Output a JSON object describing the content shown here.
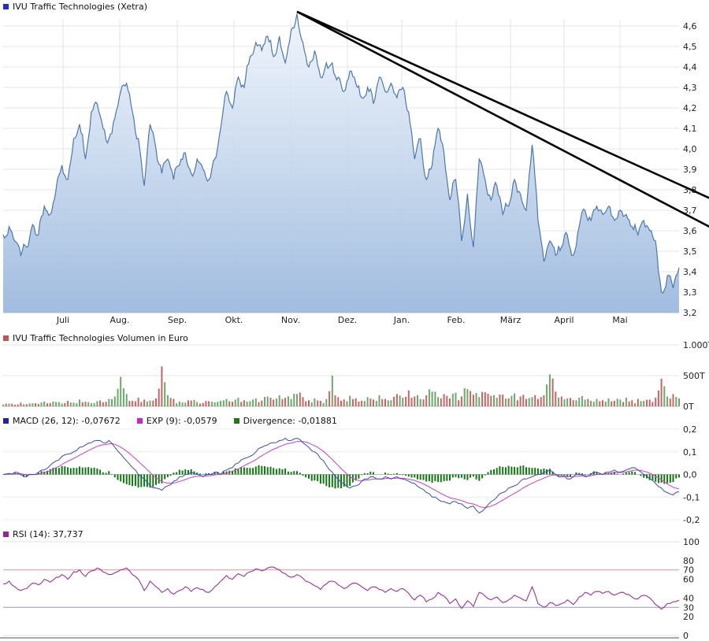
{
  "legend": {
    "price_title": "IVU Traffic Technologies (Xetra)",
    "volume_title": "IVU Traffic Technologies Volumen in Euro",
    "macd_label": "MACD (26, 12): -0,07672",
    "exp_label": "EXP (9): -0,0579",
    "divergence_label": "Divergence: -0,01881",
    "rsi_label": "RSI (14): 37,737",
    "swatches": {
      "price": "#2a2acc",
      "volume": "#c05555",
      "macd": "#2222aa",
      "exp": "#cc22cc",
      "divergence": "#1a7a1a",
      "rsi": "#992299"
    }
  },
  "chart_data": {
    "type": "line",
    "title": "IVU Traffic Technologies (Xetra)",
    "x_ticks": {
      "labels": [
        "Juli",
        "Aug.",
        "Sep.",
        "Okt.",
        "Nov.",
        "Dez.",
        "Jan.",
        "Feb.",
        "März",
        "April",
        "Mai"
      ],
      "fracs": [
        0.0886,
        0.1725,
        0.2576,
        0.3415,
        0.4254,
        0.5093,
        0.5897,
        0.6702,
        0.7506,
        0.8299,
        0.9126
      ]
    },
    "price": {
      "type": "area",
      "unit": "EUR",
      "ylim": [
        3.2,
        4.6
      ],
      "line_color": "#4a78b0",
      "trend_color": "#000000",
      "yticks": {
        "values": [
          4.6,
          4.5,
          4.4,
          4.3,
          4.2,
          4.1,
          4.0,
          3.9,
          3.8,
          3.7,
          3.6,
          3.5,
          3.4,
          3.3,
          3.2
        ],
        "labels": [
          "4,6",
          "4,5",
          "4,4",
          "4,3",
          "4,2",
          "4,1",
          "4,0",
          "3,9",
          "3,8",
          "3,7",
          "3,6",
          "3,5",
          "3,4",
          "3,3",
          "3,2"
        ]
      },
      "values": [
        3.58,
        3.62,
        3.55,
        3.48,
        3.52,
        3.63,
        3.58,
        3.72,
        3.68,
        3.8,
        3.92,
        3.85,
        4.05,
        4.12,
        3.95,
        4.18,
        4.22,
        4.1,
        4.05,
        4.15,
        4.28,
        4.32,
        4.18,
        4.05,
        3.82,
        4.12,
        4.0,
        3.88,
        3.95,
        3.85,
        3.92,
        3.98,
        3.88,
        3.95,
        3.9,
        3.85,
        3.95,
        4.1,
        4.28,
        4.2,
        4.35,
        4.3,
        4.45,
        4.52,
        4.48,
        4.55,
        4.45,
        4.55,
        4.42,
        4.58,
        4.66,
        4.52,
        4.4,
        4.48,
        4.35,
        4.42,
        4.42,
        4.35,
        4.28,
        4.38,
        4.32,
        4.25,
        4.3,
        4.22,
        4.35,
        4.28,
        4.32,
        4.25,
        4.3,
        4.18,
        3.95,
        4.05,
        3.85,
        3.92,
        4.1,
        3.98,
        3.75,
        3.85,
        3.55,
        3.78,
        3.52,
        3.95,
        3.85,
        3.75,
        3.82,
        3.68,
        3.72,
        3.85,
        3.78,
        3.7,
        4.02,
        3.65,
        3.45,
        3.55,
        3.48,
        3.52,
        3.58,
        3.48,
        3.62,
        3.7,
        3.65,
        3.72,
        3.68,
        3.72,
        3.65,
        3.7,
        3.68,
        3.62,
        3.58,
        3.65,
        3.6,
        3.55,
        3.3,
        3.38,
        3.32,
        3.42
      ],
      "trendlines": [
        {
          "x1_frac": 0.4347,
          "v1": 4.67,
          "x2_frac": 1.0446,
          "v2": 3.76
        },
        {
          "x1_frac": 0.4347,
          "v1": 4.67,
          "x2_frac": 1.0446,
          "v2": 3.62
        }
      ]
    },
    "volume": {
      "type": "bar",
      "unit": "T",
      "ylim": [
        0,
        1000
      ],
      "up_color": "#6aa96a",
      "down_color": "#c96363",
      "yticks": {
        "values": [
          1000,
          500,
          0
        ],
        "labels": [
          "1.000T",
          "500T",
          "0T"
        ]
      },
      "values": [
        30,
        45,
        25,
        60,
        35,
        50,
        40,
        80,
        55,
        70,
        45,
        90,
        60,
        110,
        75,
        50,
        85,
        65,
        120,
        160,
        480,
        200,
        90,
        140,
        110,
        95,
        130,
        650,
        180,
        120,
        80,
        60,
        95,
        70,
        55,
        85,
        65,
        90,
        120,
        75,
        140,
        100,
        85,
        130,
        95,
        160,
        110,
        180,
        140,
        120,
        200,
        150,
        100,
        130,
        90,
        120,
        500,
        150,
        110,
        170,
        130,
        90,
        150,
        110,
        180,
        120,
        100,
        200,
        140,
        260,
        160,
        120,
        180,
        240,
        150,
        200,
        130,
        220,
        160,
        280,
        190,
        150,
        230,
        170,
        140,
        190,
        130,
        210,
        160,
        120,
        150,
        120,
        180,
        520,
        240,
        160,
        130,
        100,
        140,
        110,
        90,
        120,
        100,
        130,
        90,
        110,
        140,
        100,
        120,
        90,
        110,
        140,
        450,
        160,
        200,
        130
      ]
    },
    "macd": {
      "type": "line+histogram",
      "ylim": [
        -0.2,
        0.2
      ],
      "macd_current": -0.07672,
      "exp_current": -0.0579,
      "divergence_current": -0.01881,
      "line_color": "#3a4cc0",
      "exp_color": "#d23cc8",
      "hist_color": "#117711",
      "yticks": {
        "values": [
          0.2,
          0.1,
          0,
          -0.1,
          -0.2
        ],
        "labels": [
          "0,2",
          "0,1",
          "0,0",
          "-0,1",
          "-0,2"
        ]
      },
      "values": [
        0.0,
        0.005,
        0.01,
        0.0,
        -0.01,
        0.0,
        0.01,
        0.02,
        0.04,
        0.06,
        0.08,
        0.09,
        0.1,
        0.12,
        0.13,
        0.14,
        0.15,
        0.14,
        0.15,
        0.12,
        0.09,
        0.06,
        0.03,
        0.0,
        -0.02,
        -0.05,
        -0.06,
        -0.07,
        -0.05,
        -0.03,
        -0.01,
        0.0,
        0.01,
        0.0,
        -0.01,
        0.0,
        0.01,
        0.0,
        0.02,
        0.03,
        0.05,
        0.07,
        0.08,
        0.1,
        0.12,
        0.13,
        0.14,
        0.15,
        0.16,
        0.15,
        0.16,
        0.14,
        0.12,
        0.1,
        0.07,
        0.04,
        0.01,
        -0.02,
        -0.04,
        -0.06,
        -0.05,
        -0.03,
        -0.02,
        -0.01,
        -0.02,
        -0.01,
        -0.02,
        -0.01,
        -0.02,
        -0.03,
        -0.04,
        -0.06,
        -0.08,
        -0.1,
        -0.11,
        -0.12,
        -0.13,
        -0.12,
        -0.13,
        -0.15,
        -0.14,
        -0.17,
        -0.15,
        -0.12,
        -0.1,
        -0.08,
        -0.06,
        -0.05,
        -0.03,
        -0.02,
        -0.01,
        0.0,
        0.01,
        0.02,
        0.0,
        -0.01,
        -0.02,
        -0.01,
        0.0,
        -0.01,
        0.0,
        0.01,
        0.0,
        0.01,
        0.02,
        0.01,
        0.02,
        0.03,
        0.02,
        0.0,
        -0.02,
        -0.04,
        -0.06,
        -0.08,
        -0.09,
        -0.077
      ]
    },
    "rsi": {
      "type": "line",
      "ylim": [
        0,
        100
      ],
      "current": 37.737,
      "line_color": "#993399",
      "overbought_color": "#ee9090",
      "oversold_color": "#9595d5",
      "levels": {
        "overbought": 70,
        "oversold": 30
      },
      "yticks": {
        "values": [
          100,
          80,
          70,
          60,
          40,
          30,
          20,
          0
        ],
        "labels": [
          "100",
          "80",
          "70",
          "60",
          "40",
          "30",
          "20",
          "0"
        ],
        "colors": [
          "#333",
          "#333",
          "#cc2222",
          "#333",
          "#333",
          "#5050c0",
          "#333",
          "#333"
        ]
      },
      "values": [
        55,
        58,
        52,
        48,
        50,
        56,
        54,
        60,
        57,
        62,
        65,
        60,
        68,
        70,
        63,
        69,
        72,
        68,
        65,
        67,
        70,
        72,
        65,
        60,
        48,
        58,
        52,
        46,
        50,
        44,
        48,
        52,
        47,
        51,
        49,
        46,
        52,
        58,
        64,
        60,
        66,
        63,
        68,
        71,
        69,
        72,
        73,
        70,
        66,
        62,
        65,
        61,
        57,
        53,
        49,
        55,
        58,
        54,
        50,
        54,
        56,
        52,
        48,
        52,
        49,
        46,
        50,
        47,
        50,
        45,
        38,
        43,
        36,
        39,
        46,
        42,
        34,
        39,
        29,
        37,
        31,
        46,
        42,
        38,
        41,
        35,
        38,
        43,
        40,
        37,
        52,
        34,
        30,
        35,
        32,
        34,
        38,
        33,
        41,
        46,
        43,
        47,
        45,
        47,
        43,
        46,
        44,
        41,
        39,
        43,
        40,
        33,
        28,
        34,
        36,
        37.7
      ]
    }
  }
}
